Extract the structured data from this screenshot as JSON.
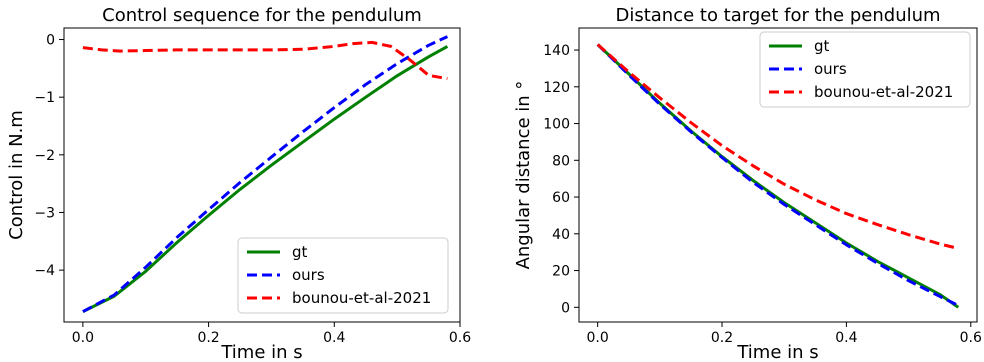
{
  "colors": {
    "gt": "#008000",
    "ours": "#0000ff",
    "bounou": "#ff0000"
  },
  "chart_data": [
    {
      "type": "line",
      "title": "Control sequence for the pendulum",
      "xlabel": "Time in s",
      "ylabel": "Control in N.m",
      "xlim": [
        -0.03,
        0.6
      ],
      "ylim": [
        -4.9,
        0.2
      ],
      "xticks": [
        0.0,
        0.2,
        0.4,
        0.6
      ],
      "xtick_labels": [
        "0.0",
        "0.2",
        "0.4",
        "0.6"
      ],
      "yticks": [
        0,
        -1,
        -2,
        -3,
        -4
      ],
      "ytick_labels": [
        "0",
        "−1",
        "−2",
        "−3",
        "−4"
      ],
      "legend_position": "bottom-right",
      "grid": false,
      "series": [
        {
          "name": "gt",
          "color": "#008000",
          "style": "solid",
          "x": [
            0.0,
            0.05,
            0.1,
            0.15,
            0.2,
            0.25,
            0.3,
            0.35,
            0.4,
            0.45,
            0.5,
            0.55,
            0.58
          ],
          "y": [
            -4.72,
            -4.45,
            -4.02,
            -3.52,
            -3.05,
            -2.6,
            -2.18,
            -1.78,
            -1.38,
            -1.0,
            -0.63,
            -0.3,
            -0.12
          ]
        },
        {
          "name": "ours",
          "color": "#0000ff",
          "style": "dashed",
          "x": [
            0.0,
            0.05,
            0.1,
            0.15,
            0.2,
            0.25,
            0.3,
            0.35,
            0.4,
            0.45,
            0.5,
            0.55,
            0.58
          ],
          "y": [
            -4.72,
            -4.43,
            -3.95,
            -3.43,
            -2.95,
            -2.48,
            -2.04,
            -1.6,
            -1.18,
            -0.78,
            -0.42,
            -0.1,
            0.05
          ]
        },
        {
          "name": "bounou-et-al-2021",
          "color": "#ff0000",
          "style": "dashed",
          "x": [
            0.0,
            0.03,
            0.06,
            0.1,
            0.15,
            0.2,
            0.25,
            0.3,
            0.35,
            0.4,
            0.43,
            0.46,
            0.49,
            0.52,
            0.55,
            0.58
          ],
          "y": [
            -0.14,
            -0.18,
            -0.2,
            -0.19,
            -0.18,
            -0.18,
            -0.18,
            -0.18,
            -0.17,
            -0.12,
            -0.07,
            -0.05,
            -0.12,
            -0.35,
            -0.62,
            -0.68
          ]
        }
      ]
    },
    {
      "type": "line",
      "title": "Distance to target for the pendulum",
      "xlabel": "Time in s",
      "ylabel": "Angular distance in °",
      "xlim": [
        -0.03,
        0.61
      ],
      "ylim": [
        -8,
        152
      ],
      "xticks": [
        0.0,
        0.2,
        0.4,
        0.6
      ],
      "xtick_labels": [
        "0.0",
        "0.2",
        "0.4",
        "0.6"
      ],
      "yticks": [
        0,
        20,
        40,
        60,
        80,
        100,
        120,
        140
      ],
      "ytick_labels": [
        "0",
        "20",
        "40",
        "60",
        "80",
        "100",
        "120",
        "140"
      ],
      "legend_position": "top-right",
      "grid": false,
      "series": [
        {
          "name": "gt",
          "color": "#008000",
          "style": "solid",
          "x": [
            0.0,
            0.05,
            0.1,
            0.15,
            0.2,
            0.25,
            0.3,
            0.35,
            0.4,
            0.45,
            0.5,
            0.55,
            0.58
          ],
          "y": [
            143,
            127,
            111,
            96,
            82,
            69,
            57,
            46,
            35,
            25,
            16,
            7,
            0
          ]
        },
        {
          "name": "ours",
          "color": "#0000ff",
          "style": "dashed",
          "x": [
            0.0,
            0.05,
            0.1,
            0.15,
            0.2,
            0.25,
            0.3,
            0.35,
            0.4,
            0.45,
            0.5,
            0.55,
            0.58
          ],
          "y": [
            143,
            126.5,
            110.5,
            95.5,
            81.5,
            68,
            56,
            45,
            34,
            24,
            14.5,
            6,
            1
          ]
        },
        {
          "name": "bounou-et-al-2021",
          "color": "#ff0000",
          "style": "dashed",
          "x": [
            0.0,
            0.05,
            0.1,
            0.15,
            0.2,
            0.25,
            0.3,
            0.35,
            0.4,
            0.45,
            0.5,
            0.55,
            0.58
          ],
          "y": [
            143,
            128,
            114,
            100.5,
            88,
            77,
            67,
            58.5,
            51,
            45,
            39.5,
            34.5,
            32
          ]
        }
      ]
    }
  ]
}
